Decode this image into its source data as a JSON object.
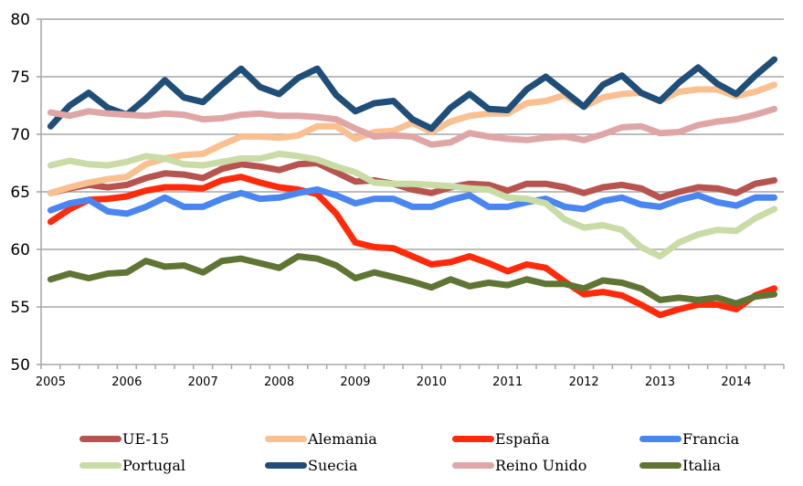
{
  "chart_data": {
    "type": "line",
    "title": "",
    "xlabel": "",
    "ylabel": "",
    "ylim": [
      50,
      80
    ],
    "yticks": [
      "50",
      "55",
      "60",
      "65",
      "70",
      "75",
      "80"
    ],
    "ytick_values": [
      50,
      55,
      60,
      65,
      70,
      75,
      80
    ],
    "x_year_labels": [
      "2005",
      "2006",
      "2007",
      "2008",
      "2009",
      "2010",
      "2011",
      "2012",
      "2013",
      "2014"
    ],
    "x_periods": "quarterly, 2005Q1 to 2014Q3",
    "grid": "horizontal",
    "legend_position": "bottom",
    "series": [
      {
        "name": "UE-15",
        "color": "#b85450",
        "values": [
          64.9,
          65.3,
          65.6,
          65.4,
          65.6,
          66.2,
          66.6,
          66.5,
          66.2,
          67.0,
          67.4,
          67.2,
          66.9,
          67.4,
          67.5,
          66.7,
          65.9,
          66.0,
          65.7,
          65.2,
          64.9,
          65.4,
          65.7,
          65.6,
          65.1,
          65.7,
          65.7,
          65.4,
          64.9,
          65.4,
          65.6,
          65.3,
          64.5,
          65.0,
          65.4,
          65.3,
          64.9,
          65.7,
          66.0
        ]
      },
      {
        "name": "Alemania",
        "color": "#fac090",
        "values": [
          64.9,
          65.4,
          65.8,
          66.1,
          66.3,
          67.4,
          67.9,
          68.2,
          68.3,
          69.1,
          69.8,
          69.8,
          69.7,
          69.9,
          70.7,
          70.7,
          69.6,
          70.2,
          70.3,
          71.0,
          70.2,
          71.1,
          71.6,
          71.8,
          71.8,
          72.7,
          72.9,
          73.4,
          72.4,
          73.2,
          73.5,
          73.6,
          72.9,
          73.7,
          73.9,
          73.9,
          73.3,
          73.7,
          74.3
        ]
      },
      {
        "name": "España",
        "color": "#ff2a0a",
        "values": [
          62.4,
          63.5,
          64.3,
          64.4,
          64.6,
          65.1,
          65.4,
          65.4,
          65.3,
          66.0,
          66.3,
          65.8,
          65.4,
          65.2,
          64.8,
          63.1,
          60.6,
          60.2,
          60.1,
          59.4,
          58.7,
          58.9,
          59.4,
          58.8,
          58.1,
          58.7,
          58.4,
          57.2,
          56.1,
          56.3,
          56.0,
          55.2,
          54.3,
          54.8,
          55.2,
          55.2,
          54.8,
          56.0,
          56.6
        ]
      },
      {
        "name": "Francia",
        "color": "#4a86f2",
        "values": [
          63.4,
          64.0,
          64.3,
          63.3,
          63.1,
          63.7,
          64.5,
          63.7,
          63.7,
          64.4,
          64.9,
          64.4,
          64.5,
          64.9,
          65.2,
          64.7,
          64.0,
          64.4,
          64.4,
          63.7,
          63.7,
          64.3,
          64.7,
          63.7,
          63.7,
          64.1,
          64.4,
          63.7,
          63.5,
          64.2,
          64.5,
          63.9,
          63.7,
          64.3,
          64.7,
          64.1,
          63.8,
          64.5,
          64.5
        ]
      },
      {
        "name": "Portugal",
        "color": "#c9dca6",
        "values": [
          67.3,
          67.7,
          67.4,
          67.3,
          67.6,
          68.1,
          67.9,
          67.4,
          67.3,
          67.6,
          67.9,
          67.9,
          68.3,
          68.1,
          67.8,
          67.2,
          66.7,
          65.8,
          65.7,
          65.7,
          65.6,
          65.5,
          65.3,
          65.2,
          64.5,
          64.4,
          64.0,
          62.6,
          61.9,
          62.1,
          61.7,
          60.2,
          59.4,
          60.6,
          61.3,
          61.7,
          61.6,
          62.7,
          63.5
        ]
      },
      {
        "name": "Suecia",
        "color": "#1f4e79",
        "values": [
          70.7,
          72.5,
          73.6,
          72.3,
          71.7,
          73.1,
          74.7,
          73.2,
          72.8,
          74.3,
          75.7,
          74.1,
          73.5,
          74.9,
          75.7,
          73.4,
          72.0,
          72.7,
          72.9,
          71.3,
          70.5,
          72.3,
          73.5,
          72.2,
          72.1,
          73.9,
          75.0,
          73.7,
          72.4,
          74.3,
          75.1,
          73.6,
          72.9,
          74.5,
          75.8,
          74.4,
          73.5,
          75.1,
          76.5
        ]
      },
      {
        "name": "Reino Unido",
        "color": "#e0a6a6",
        "values": [
          71.9,
          71.6,
          72.0,
          71.8,
          71.7,
          71.6,
          71.8,
          71.7,
          71.3,
          71.4,
          71.7,
          71.8,
          71.6,
          71.6,
          71.5,
          71.3,
          70.5,
          69.8,
          69.9,
          69.8,
          69.1,
          69.3,
          70.1,
          69.8,
          69.6,
          69.5,
          69.7,
          69.8,
          69.5,
          70.0,
          70.6,
          70.7,
          70.1,
          70.2,
          70.8,
          71.1,
          71.3,
          71.7,
          72.2
        ]
      },
      {
        "name": "Italia",
        "color": "#5f7534",
        "values": [
          57.4,
          57.9,
          57.5,
          57.9,
          58.0,
          59.0,
          58.5,
          58.6,
          58.0,
          59.0,
          59.2,
          58.8,
          58.4,
          59.4,
          59.2,
          58.6,
          57.5,
          58.0,
          57.6,
          57.2,
          56.7,
          57.4,
          56.8,
          57.1,
          56.9,
          57.4,
          57.0,
          57.0,
          56.6,
          57.3,
          57.1,
          56.6,
          55.6,
          55.8,
          55.6,
          55.8,
          55.3,
          55.9,
          56.1
        ]
      }
    ]
  }
}
